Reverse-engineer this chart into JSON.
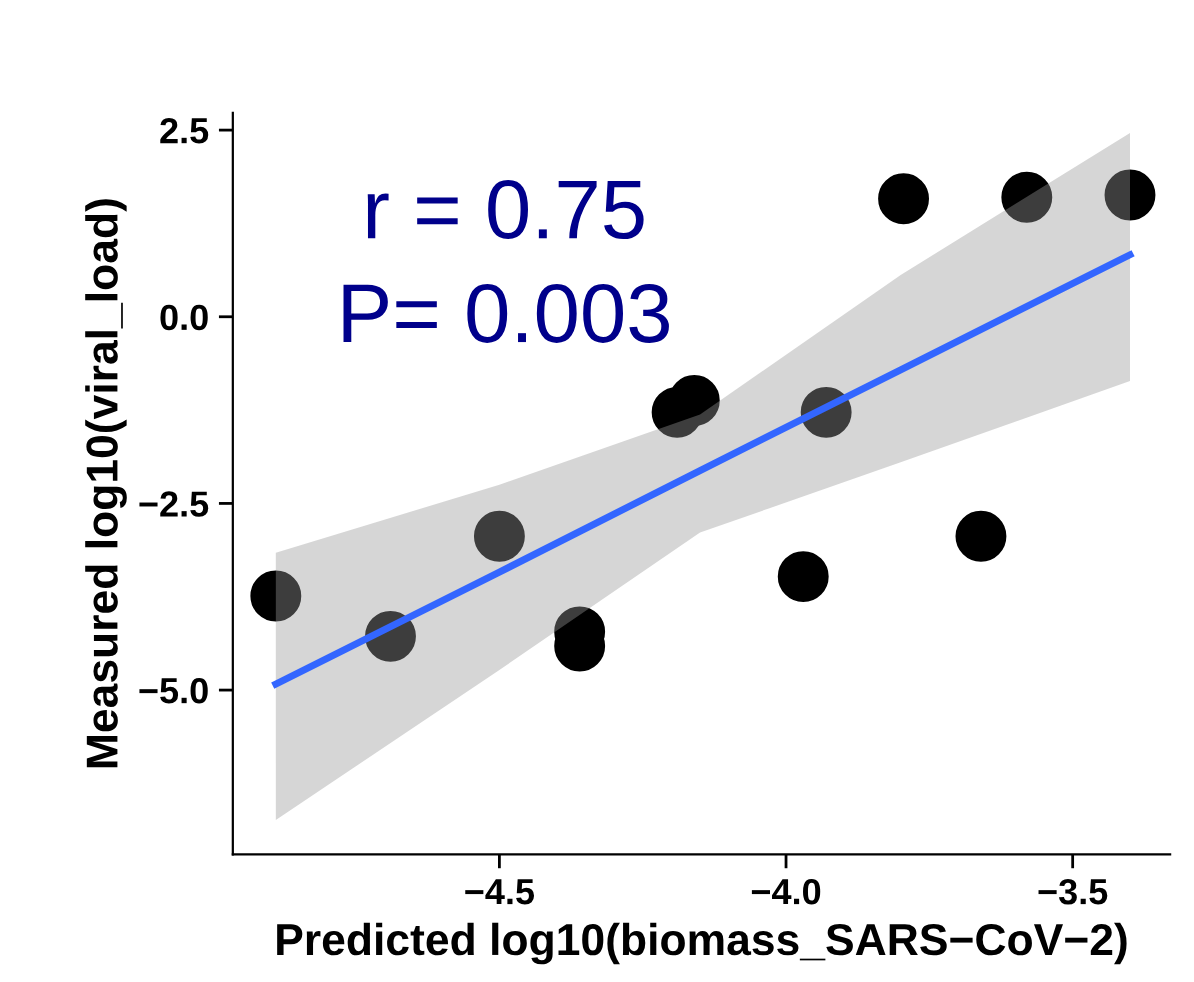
{
  "chart_data": {
    "type": "scatter",
    "xlabel": "Predicted log10(biomass_SARS−CoV−2)",
    "ylabel": "Measured log10(viral_load)",
    "annotations": [
      "r = 0.75",
      "P= 0.003"
    ],
    "xlim": [
      -4.965,
      -3.33
    ],
    "ylim": [
      -7.2,
      2.73
    ],
    "xticks": [
      {
        "value": -4.5,
        "label": "−4.5"
      },
      {
        "value": -4,
        "label": "−4.0"
      },
      {
        "value": -3.5,
        "label": "−3.5"
      }
    ],
    "yticks": [
      {
        "value": 2.5,
        "label": "2.5"
      },
      {
        "value": 0,
        "label": "0.0"
      },
      {
        "value": -2.5,
        "label": "−2.5"
      },
      {
        "value": -5,
        "label": "−5.0"
      }
    ],
    "grid": false,
    "series": [
      {
        "marker": "circle",
        "color": "#000000",
        "x": [
          -4.89,
          -4.69,
          -4.5,
          -4.36,
          -4.36,
          -4.19,
          -4.16,
          -3.97,
          -3.93,
          -3.795,
          -3.66,
          -3.58,
          -3.4
        ],
        "values": [
          -3.74,
          -4.28,
          -2.94,
          -4.22,
          -4.41,
          -1.28,
          -1.12,
          -3.48,
          -1.28,
          1.58,
          -2.94,
          1.6,
          1.63
        ]
      },
      {
        "type": "line",
        "color": "#3366ff",
        "x": [
          -4.89,
          -4.5,
          -4.15,
          -3.8,
          -3.4
        ],
        "values": [
          -4.92,
          -3.42,
          -2.06,
          -0.71,
          0.83
        ],
        "lower": [
          -6.74,
          -4.73,
          -2.89,
          -1.95,
          -0.86
        ],
        "upper": [
          -3.16,
          -2.25,
          -1.31,
          0.56,
          2.46
        ]
      }
    ]
  }
}
